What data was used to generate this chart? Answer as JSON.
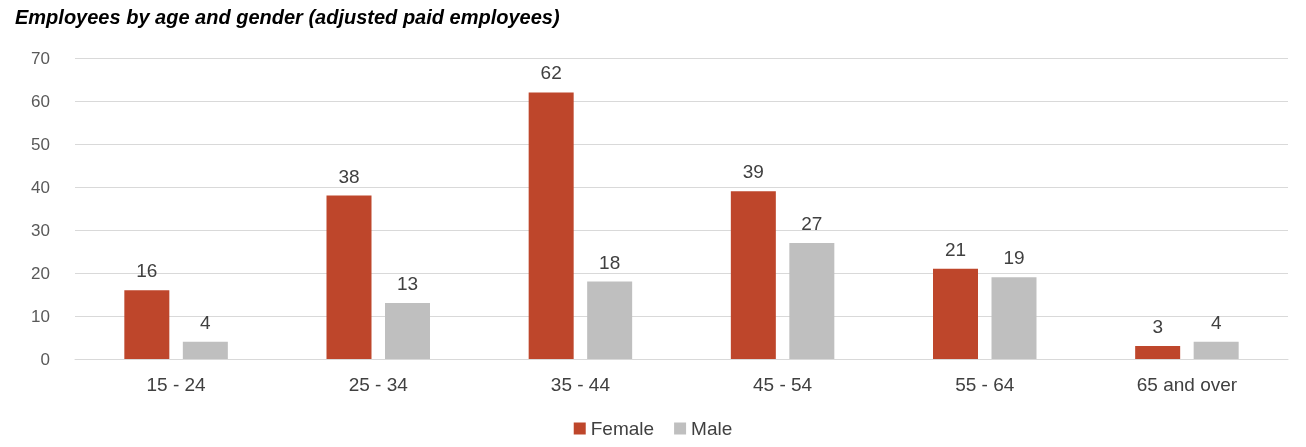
{
  "chart_data": {
    "type": "bar",
    "title": "Employees by age and gender (adjusted paid employees)",
    "categories": [
      "15 - 24",
      "25 - 34",
      "35 - 44",
      "45 - 54",
      "55 - 64",
      "65 and over"
    ],
    "series": [
      {
        "name": "Female",
        "color": "#be462b",
        "values": [
          16,
          38,
          62,
          39,
          21,
          3
        ]
      },
      {
        "name": "Male",
        "color": "#bfbfbf",
        "values": [
          4,
          13,
          18,
          27,
          19,
          4
        ]
      }
    ],
    "ylim": [
      0,
      70
    ],
    "yticks": [
      0,
      10,
      20,
      30,
      40,
      50,
      60,
      70
    ],
    "grid": "y",
    "legend": "bottom",
    "data_labels": true
  }
}
